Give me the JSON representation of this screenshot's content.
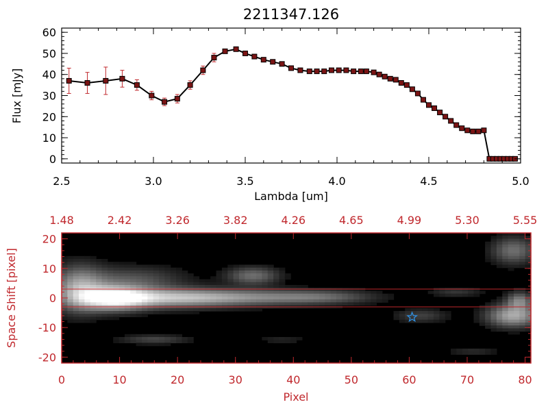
{
  "chart_data": [
    {
      "type": "line",
      "title": "2211347.126",
      "xlabel": "Lambda [um]",
      "ylabel": "Flux [mJy]",
      "xlim": [
        2.5,
        5.0
      ],
      "ylim": [
        -2,
        62
      ],
      "xticks": [
        {
          "v": 2.5,
          "label": "2.5"
        },
        {
          "v": 3.0,
          "label": "3.0"
        },
        {
          "v": 3.5,
          "label": "3.5"
        },
        {
          "v": 4.0,
          "label": "4.0"
        },
        {
          "v": 4.5,
          "label": "4.5"
        },
        {
          "v": 5.0,
          "label": "5.0"
        }
      ],
      "yticks": [
        {
          "v": 0,
          "label": "0"
        },
        {
          "v": 10,
          "label": "10"
        },
        {
          "v": 20,
          "label": "20"
        },
        {
          "v": 30,
          "label": "30"
        },
        {
          "v": 40,
          "label": "40"
        },
        {
          "v": 50,
          "label": "50"
        },
        {
          "v": 60,
          "label": "60"
        }
      ],
      "series": [
        {
          "x": [
            2.54,
            2.64,
            2.74,
            2.83,
            2.91,
            2.99,
            3.06,
            3.13,
            3.2,
            3.27,
            3.33,
            3.39,
            3.45,
            3.5,
            3.55,
            3.6,
            3.65,
            3.7,
            3.75,
            3.8,
            3.85,
            3.89,
            3.93,
            3.97,
            4.01,
            4.05,
            4.09,
            4.13,
            4.16,
            4.2,
            4.23,
            4.26,
            4.29,
            4.32,
            4.35,
            4.38,
            4.41,
            4.44,
            4.47,
            4.5,
            4.53,
            4.56,
            4.59,
            4.62,
            4.65,
            4.68,
            4.71,
            4.74,
            4.77,
            4.8,
            4.83,
            4.85,
            4.87,
            4.89,
            4.91,
            4.93,
            4.95,
            4.97
          ],
          "y": [
            37,
            36,
            37,
            38,
            35,
            30,
            27,
            28.5,
            35,
            42,
            48,
            51,
            52,
            50,
            48.5,
            47,
            46,
            45,
            43,
            42,
            41.5,
            41.5,
            41.5,
            42,
            42,
            42,
            41.5,
            41.5,
            41.5,
            41,
            40,
            39,
            38,
            37.5,
            36,
            35,
            33,
            31,
            28,
            25.5,
            24,
            22,
            20,
            18,
            16,
            14.5,
            13.5,
            13,
            13,
            13.5,
            0,
            0,
            0,
            0,
            0,
            0,
            0,
            0
          ],
          "err": [
            6,
            5,
            6.5,
            4,
            2.5,
            2,
            1.8,
            2,
            2,
            2,
            2,
            1,
            1,
            1,
            1,
            1,
            1,
            1,
            1,
            1,
            1,
            1,
            1,
            1,
            1,
            1,
            1,
            1,
            1,
            1,
            1,
            1,
            1,
            1,
            1,
            1,
            1,
            1,
            1,
            1,
            1,
            1,
            1,
            1,
            1,
            1,
            1,
            1,
            1,
            1,
            0.5,
            0.5,
            0.5,
            0.5,
            0.5,
            0.5,
            0.5,
            0.5
          ]
        }
      ]
    },
    {
      "type": "heatmap",
      "xlabel": "Pixel",
      "ylabel": "Space Shift [pixel]",
      "xlim": [
        0,
        81
      ],
      "ylim": [
        -22,
        22
      ],
      "xticks": [
        {
          "v": 0,
          "label": "0"
        },
        {
          "v": 10,
          "label": "10"
        },
        {
          "v": 20,
          "label": "20"
        },
        {
          "v": 30,
          "label": "30"
        },
        {
          "v": 40,
          "label": "40"
        },
        {
          "v": 50,
          "label": "50"
        },
        {
          "v": 60,
          "label": "60"
        },
        {
          "v": 70,
          "label": "70"
        },
        {
          "v": 80,
          "label": "80"
        }
      ],
      "yticks": [
        {
          "v": -20,
          "label": "-20"
        },
        {
          "v": -10,
          "label": "-10"
        },
        {
          "v": 0,
          "label": "0"
        },
        {
          "v": 10,
          "label": "10"
        },
        {
          "v": 20,
          "label": "20"
        }
      ],
      "top_ticks": [
        {
          "v": 0,
          "label": "1.48"
        },
        {
          "v": 10,
          "label": "2.42"
        },
        {
          "v": 20,
          "label": "3.26"
        },
        {
          "v": 30,
          "label": "3.82"
        },
        {
          "v": 40,
          "label": "4.26"
        },
        {
          "v": 50,
          "label": "4.65"
        },
        {
          "v": 60,
          "label": "4.99"
        },
        {
          "v": 70,
          "label": "5.30"
        },
        {
          "v": 80,
          "label": "5.55"
        }
      ],
      "aperture_lines": [
        3,
        -3
      ],
      "marker": {
        "x": 60.5,
        "y": -6.5,
        "shape": "star",
        "color": "#2f8fe0"
      },
      "blobs": [
        {
          "x": 9,
          "y": 0,
          "sx": 4,
          "sy": 2.6,
          "a": 0.95
        },
        {
          "x": 3,
          "y": 3,
          "sx": 3,
          "sy": 5,
          "a": 0.55
        },
        {
          "x": 18,
          "y": 0,
          "sx": 8,
          "sy": 2.2,
          "a": 0.55
        },
        {
          "x": 32,
          "y": 0.2,
          "sx": 10,
          "sy": 1.8,
          "a": 0.38
        },
        {
          "x": 45,
          "y": 0.3,
          "sx": 6,
          "sy": 1.5,
          "a": 0.22
        },
        {
          "x": 12,
          "y": 6,
          "sx": 6,
          "sy": 3,
          "a": 0.25
        },
        {
          "x": 33,
          "y": 7.5,
          "sx": 3,
          "sy": 2,
          "a": 0.35
        },
        {
          "x": 16,
          "y": -14,
          "sx": 4,
          "sy": 1,
          "a": 0.2
        },
        {
          "x": 62,
          "y": -6,
          "sx": 3,
          "sy": 1.5,
          "a": 0.18
        },
        {
          "x": 78,
          "y": -6,
          "sx": 3,
          "sy": 2.5,
          "a": 0.6
        },
        {
          "x": 79,
          "y": -1,
          "sx": 1.5,
          "sy": 2,
          "a": 0.4
        },
        {
          "x": 78,
          "y": 16,
          "sx": 2.5,
          "sy": 3,
          "a": 0.35
        },
        {
          "x": 68,
          "y": 2,
          "sx": 3,
          "sy": 1,
          "a": 0.14
        },
        {
          "x": 71,
          "y": -18,
          "sx": 3,
          "sy": 1,
          "a": 0.1
        },
        {
          "x": 38,
          "y": -14,
          "sx": 3,
          "sy": 1,
          "a": 0.08
        }
      ]
    }
  ]
}
